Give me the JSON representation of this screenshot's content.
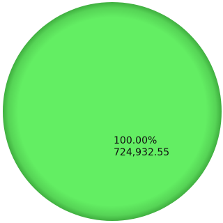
{
  "chart_data": {
    "type": "pie",
    "slices": [
      {
        "percent_label": "100.00%",
        "value_label": "724,932.55",
        "value": 724932.55,
        "fraction": 1.0,
        "color": "#63ee63"
      }
    ],
    "colors": {
      "slice_fill": "#63ee63",
      "slice_edge_shadow": "#3fae3f"
    }
  }
}
